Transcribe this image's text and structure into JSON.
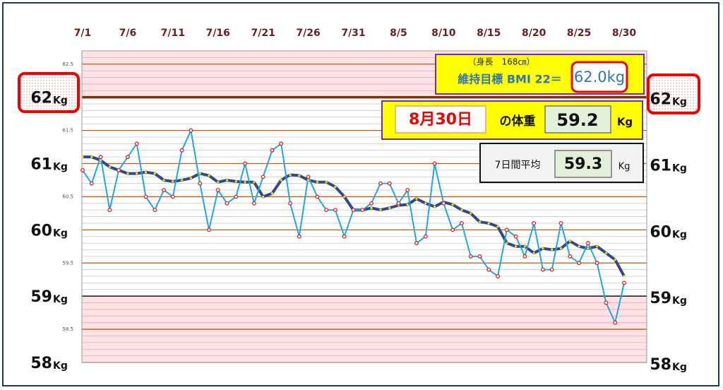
{
  "chart_data": {
    "type": "line",
    "categories": [
      "7/1",
      null,
      null,
      null,
      null,
      "7/6",
      null,
      null,
      null,
      null,
      "7/11",
      null,
      null,
      null,
      null,
      "7/16",
      null,
      null,
      null,
      null,
      "7/21",
      null,
      null,
      null,
      null,
      "7/26",
      null,
      null,
      null,
      null,
      "7/31",
      null,
      null,
      null,
      null,
      "8/5",
      null,
      null,
      null,
      null,
      "8/10",
      null,
      null,
      null,
      null,
      "8/15",
      null,
      null,
      null,
      null,
      "8/20",
      null,
      null,
      null,
      null,
      "8/25",
      null,
      null,
      null,
      null,
      "8/30"
    ],
    "series": [
      {
        "color": "#1ea7e4",
        "marker_color": "#e02020",
        "values": [
          60.9,
          60.7,
          61.1,
          60.3,
          60.9,
          61.1,
          61.3,
          60.5,
          60.3,
          60.6,
          60.5,
          61.2,
          61.5,
          60.7,
          60.0,
          60.6,
          60.4,
          60.5,
          61.0,
          60.4,
          60.8,
          61.2,
          61.3,
          60.4,
          59.9,
          60.8,
          60.5,
          60.3,
          60.3,
          59.9,
          60.3,
          60.3,
          60.4,
          60.7,
          60.7,
          60.4,
          60.6,
          59.8,
          59.9,
          61.0,
          60.4,
          60.0,
          60.1,
          59.6,
          59.6,
          59.4,
          59.3,
          60.0,
          59.9,
          59.6,
          60.1,
          59.4,
          59.4,
          60.1,
          59.6,
          59.5,
          59.8,
          59.5,
          58.9,
          58.6,
          59.2
        ]
      },
      {
        "color": "#2f4a8a",
        "marker_color": "#f2e600",
        "values": [
          61.1,
          61.1,
          61.05,
          60.95,
          60.9,
          60.85,
          60.85,
          60.87,
          60.85,
          60.75,
          60.73,
          60.75,
          60.78,
          60.85,
          60.82,
          60.72,
          60.75,
          60.73,
          60.72,
          60.72,
          60.5,
          60.55,
          60.75,
          60.83,
          60.82,
          60.75,
          60.72,
          60.72,
          60.65,
          60.5,
          60.3,
          60.3,
          60.33,
          60.3,
          60.33,
          60.37,
          60.38,
          60.47,
          60.4,
          60.35,
          60.42,
          60.38,
          60.3,
          60.25,
          60.12,
          60.1,
          60.05,
          59.8,
          59.75,
          59.75,
          59.65,
          59.72,
          59.7,
          59.72,
          59.83,
          59.75,
          59.72,
          59.75,
          59.65,
          59.55,
          59.3
        ]
      }
    ],
    "ylim": [
      58,
      62.7
    ],
    "yticks": [
      58,
      59,
      60,
      61,
      62
    ],
    "y_unit": "Kg",
    "minor_yticks": [
      58.5,
      59.5,
      60.5,
      61.5,
      62.5
    ],
    "fine_grid": 0.1,
    "target": 62,
    "lower_limit": 59,
    "alert_bands": [
      [
        62,
        62.7
      ],
      [
        58,
        59
      ]
    ]
  },
  "panels": {
    "height_note": "（身長　168㎝）",
    "target_label": "維持目標 BMI 22＝",
    "target_value": "62.0kg",
    "date_label": "8月30日",
    "weight_label": "の体重",
    "latest_value": "59.2",
    "unit": "Kg",
    "avg_label": "7日間平均",
    "avg_value": "59.3"
  }
}
